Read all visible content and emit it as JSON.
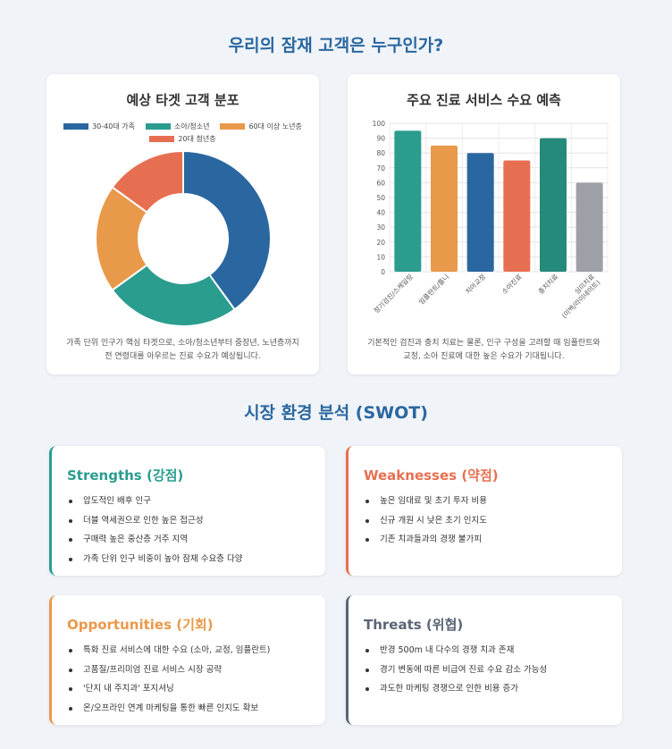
{
  "header": {
    "title": "우리의 잠재 고객은 누구인가?"
  },
  "pie_card": {
    "title": "예상 타겟 고객 분포",
    "caption_line1": "가족 단위 인구가 핵심 타겟으로, 소아/청소년부터 중장년, 노년층까지",
    "caption_line2": "전 연령대를 아우르는 진료 수요가 예상됩니다."
  },
  "bar_card": {
    "title": "주요 진료 서비스 수요 예측",
    "caption_line1": "기본적인 검진과 충치 치료는 물론, 인구 구성을 고려할 때 임플란트와",
    "caption_line2": "교정, 소아 진료에 대한 높은 수요가 기대됩니다."
  },
  "swot_section": {
    "title": "시장 환경 분석 (SWOT)"
  },
  "swot": {
    "strengths": {
      "title": "Strengths (강점)",
      "color": "#2a9d8f",
      "items": [
        "압도적인 배후 인구",
        "더블 역세권으로 인한 높은 접근성",
        "구매력 높은 중산층 거주 지역",
        "가족 단위 인구 비중이 높아 잠재 수요층 다양"
      ]
    },
    "weaknesses": {
      "title": "Weaknesses (약점)",
      "color": "#e76f51",
      "items": [
        "높은 임대료 및 초기 투자 비용",
        "신규 개원 시 낮은 초기 인지도",
        "기존 치과들과의 경쟁 불가피"
      ]
    },
    "opportunities": {
      "title": "Opportunities (기회)",
      "color": "#e9994a",
      "items": [
        "특화 진료 서비스에 대한 수요 (소아, 교정, 임플란트)",
        "고품질/프리미엄 진료 서비스 시장 공략",
        "'단지 내 주치과' 포지셔닝",
        "온/오프라인 연계 마케팅을 통한 빠른 인지도 확보"
      ]
    },
    "threats": {
      "title": "Threats (위협)",
      "color": "#5a6575",
      "items": [
        "반경 500m 내 다수의 경쟁 치과 존재",
        "경기 변동에 따른 비급여 진료 수요 감소 가능성",
        "과도한 마케팅 경쟁으로 인한 비용 증가"
      ]
    }
  },
  "chart_data": [
    {
      "type": "pie",
      "categories": [
        "30-40대 가족",
        "소아/청소년",
        "60대 이상 노년층",
        "20대 청년층"
      ],
      "values": [
        40,
        25,
        20,
        15
      ],
      "colors": [
        "#2a67a0",
        "#2a9d8f",
        "#e9994a",
        "#e76f51"
      ],
      "legend": "top",
      "donut": true
    },
    {
      "type": "bar",
      "categories": [
        "정기검진/스케일링",
        "임플란트/틀니",
        "치아교정",
        "소아진료",
        "충치치료",
        "심미치료 (미백/라미네이트)"
      ],
      "values": [
        95,
        85,
        80,
        75,
        90,
        60
      ],
      "colors": [
        "#2a9d8f",
        "#e9994a",
        "#2a67a0",
        "#e76f51",
        "#268a7a",
        "#9da0a6"
      ],
      "ylim": [
        0,
        100
      ],
      "yticks": [
        0,
        10,
        20,
        30,
        40,
        50,
        60,
        70,
        80,
        90,
        100
      ],
      "grid": true
    }
  ]
}
